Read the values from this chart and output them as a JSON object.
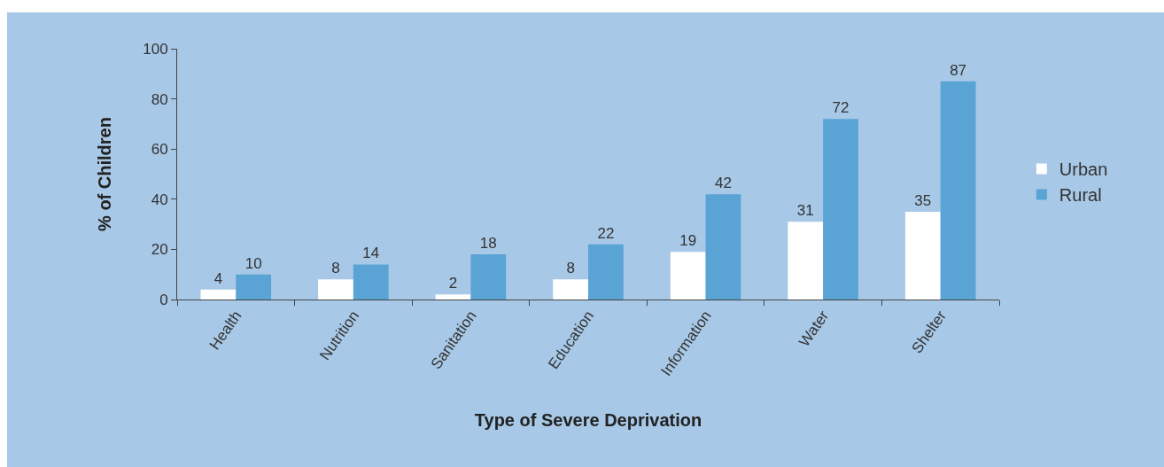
{
  "chart_data": {
    "type": "bar",
    "xlabel": "Type of Severe Deprivation",
    "ylabel": "% of Children",
    "categories": [
      "Health",
      "Nutrition",
      "Sanitation",
      "Education",
      "Information",
      "Water",
      "Shelter"
    ],
    "series": [
      {
        "name": "Urban",
        "color": "#ffffff",
        "values": [
          4,
          8,
          2,
          8,
          19,
          31,
          35
        ]
      },
      {
        "name": "Rural",
        "color": "#5aa3d5",
        "values": [
          10,
          14,
          18,
          22,
          42,
          72,
          87
        ]
      }
    ],
    "ylim": [
      0,
      100
    ],
    "yticks": [
      0,
      20,
      40,
      60,
      80,
      100
    ],
    "grid": false,
    "legend": "right",
    "data_labels": true
  }
}
